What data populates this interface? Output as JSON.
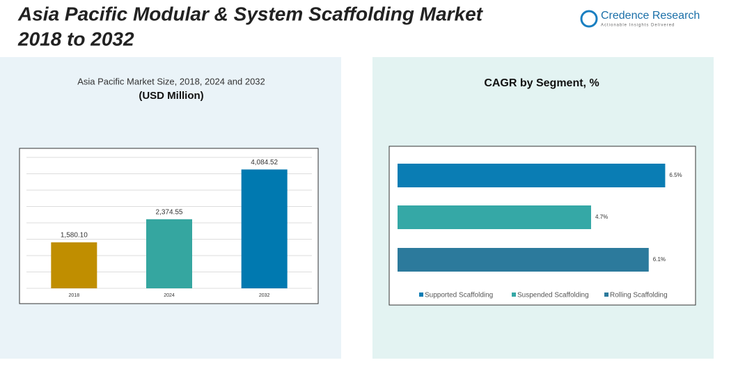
{
  "header": {
    "title_line1": "Asia Pacific Modular & System Scaffolding Market",
    "title_line2": "2018 to 2032",
    "logo_name": "Credence Research",
    "logo_tagline": "Actionable Insights Delivered"
  },
  "chart_data": [
    {
      "type": "bar",
      "title": "Asia Pacific Market Size, 2018, 2024 and 2032",
      "subtitle": "(USD Million)",
      "categories": [
        "2018",
        "2024",
        "2032"
      ],
      "values": [
        1580.1,
        2374.55,
        4084.52
      ],
      "value_labels": [
        "1,580.10",
        "2,374.55",
        "4,084.52"
      ],
      "colors": [
        "#c08e00",
        "#35a6a0",
        "#0079b0"
      ],
      "ylim": [
        0,
        4500
      ],
      "grid": true
    },
    {
      "type": "hbar",
      "title": "CAGR by Segment, %",
      "categories": [
        "Supported Scaffolding",
        "Suspended Scaffolding",
        "Rolling Scaffolding"
      ],
      "values": [
        6.5,
        4.7,
        6.1
      ],
      "value_labels": [
        "6.5%",
        "4.7%",
        "6.1%"
      ],
      "colors": [
        "#0a7db4",
        "#35a8a6",
        "#2c7a9c"
      ],
      "xlim": [
        0,
        7
      ],
      "legend": "bottom"
    }
  ]
}
